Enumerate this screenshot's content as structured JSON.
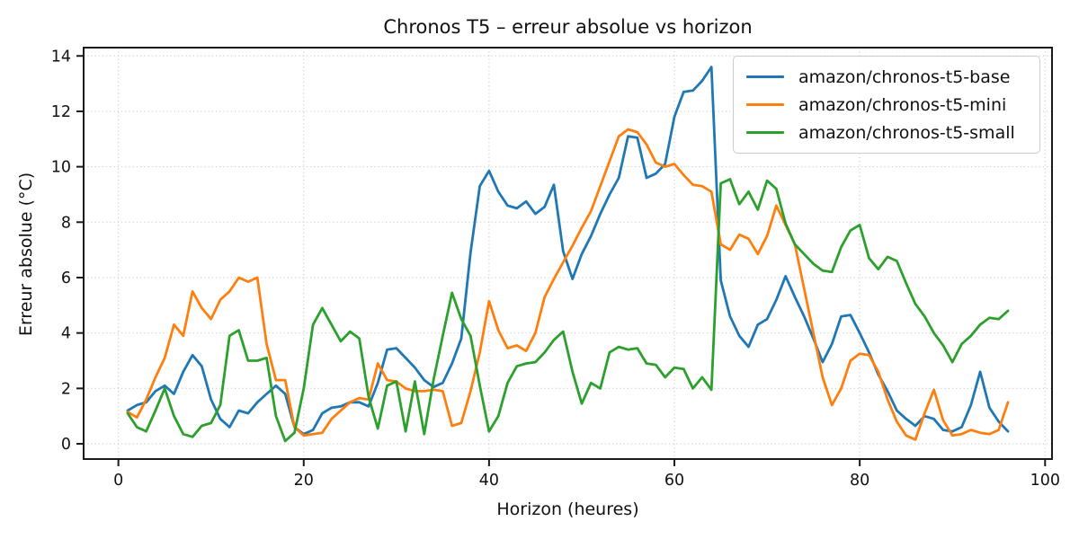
{
  "chart_data": {
    "type": "line",
    "title": "Chronos T5 – erreur absolue vs horizon",
    "xlabel": "Horizon (heures)",
    "ylabel": "Erreur absolue (°C)",
    "grid": "dotted",
    "legend_position": "upper right",
    "xlim": [
      -3.75,
      100.75
    ],
    "ylim": [
      -0.55,
      14.3
    ],
    "xticks": [
      0,
      20,
      40,
      60,
      80,
      100
    ],
    "yticks": [
      0,
      2,
      4,
      6,
      8,
      10,
      12,
      14
    ],
    "x": [
      1,
      2,
      3,
      4,
      5,
      6,
      7,
      8,
      9,
      10,
      11,
      12,
      13,
      14,
      15,
      16,
      17,
      18,
      19,
      20,
      21,
      22,
      23,
      24,
      25,
      26,
      27,
      28,
      29,
      30,
      31,
      32,
      33,
      34,
      35,
      36,
      37,
      38,
      39,
      40,
      41,
      42,
      43,
      44,
      45,
      46,
      47,
      48,
      49,
      50,
      51,
      52,
      53,
      54,
      55,
      56,
      57,
      58,
      59,
      60,
      61,
      62,
      63,
      64,
      65,
      66,
      67,
      68,
      69,
      70,
      71,
      72,
      73,
      74,
      75,
      76,
      77,
      78,
      79,
      80,
      81,
      82,
      83,
      84,
      85,
      86,
      87,
      88,
      89,
      90,
      91,
      92,
      93,
      94,
      95,
      96
    ],
    "series": [
      {
        "name": "amazon/chronos-t5-base",
        "color": "#1f77b4",
        "values": [
          1.2,
          1.4,
          1.5,
          1.9,
          2.1,
          1.8,
          2.6,
          3.2,
          2.8,
          1.6,
          0.9,
          0.6,
          1.2,
          1.1,
          1.5,
          1.8,
          2.1,
          1.8,
          0.6,
          0.35,
          0.5,
          1.1,
          1.3,
          1.35,
          1.5,
          1.5,
          1.35,
          2.2,
          3.4,
          3.45,
          3.1,
          2.75,
          2.3,
          2.05,
          2.2,
          2.9,
          3.8,
          6.9,
          9.3,
          9.85,
          9.1,
          8.6,
          8.5,
          8.75,
          8.3,
          8.55,
          9.35,
          6.95,
          5.95,
          6.85,
          7.5,
          8.3,
          9.0,
          9.6,
          11.1,
          11.05,
          9.6,
          9.75,
          10.1,
          11.8,
          12.7,
          12.75,
          13.1,
          13.6,
          5.9,
          4.6,
          3.9,
          3.5,
          4.3,
          4.5,
          5.2,
          6.05,
          5.3,
          4.6,
          3.8,
          2.95,
          3.6,
          4.6,
          4.65,
          4.0,
          3.3,
          2.5,
          1.9,
          1.2,
          0.9,
          0.65,
          1.0,
          0.9,
          0.5,
          0.45,
          0.6,
          1.4,
          2.6,
          1.3,
          0.8,
          0.45
        ]
      },
      {
        "name": "amazon/chronos-t5-mini",
        "color": "#ff7f0e",
        "values": [
          1.15,
          0.95,
          1.6,
          2.4,
          3.1,
          4.3,
          3.9,
          5.5,
          4.9,
          4.5,
          5.2,
          5.5,
          6.0,
          5.85,
          6.0,
          3.6,
          2.3,
          2.3,
          0.6,
          0.3,
          0.35,
          0.4,
          0.9,
          1.2,
          1.5,
          1.65,
          1.6,
          2.9,
          2.3,
          2.25,
          2.0,
          1.9,
          1.9,
          1.95,
          1.9,
          0.65,
          0.75,
          1.9,
          3.3,
          5.15,
          4.1,
          3.45,
          3.55,
          3.35,
          4.0,
          5.3,
          5.95,
          6.55,
          7.15,
          7.8,
          8.4,
          9.3,
          10.2,
          11.1,
          11.35,
          11.25,
          10.8,
          10.15,
          10.0,
          10.1,
          9.7,
          9.35,
          9.3,
          9.1,
          7.2,
          7.0,
          7.55,
          7.4,
          6.85,
          7.5,
          8.6,
          7.9,
          7.2,
          5.6,
          4.0,
          2.4,
          1.4,
          2.0,
          3.0,
          3.25,
          3.2,
          2.6,
          1.6,
          0.8,
          0.3,
          0.15,
          1.1,
          1.95,
          0.85,
          0.3,
          0.35,
          0.5,
          0.4,
          0.35,
          0.5,
          1.5
        ]
      },
      {
        "name": "amazon/chronos-t5-small",
        "color": "#2ca02c",
        "values": [
          1.1,
          0.6,
          0.45,
          1.2,
          2.0,
          1.0,
          0.35,
          0.25,
          0.65,
          0.75,
          1.4,
          3.9,
          4.1,
          3.0,
          3.0,
          3.1,
          1.0,
          0.1,
          0.4,
          2.0,
          4.3,
          4.9,
          4.3,
          3.7,
          4.05,
          3.8,
          1.7,
          0.55,
          2.1,
          2.25,
          0.45,
          2.25,
          0.35,
          2.3,
          3.9,
          5.45,
          4.5,
          3.9,
          2.1,
          0.45,
          1.0,
          2.2,
          2.8,
          2.9,
          2.95,
          3.3,
          3.75,
          4.05,
          2.6,
          1.45,
          2.2,
          2.0,
          3.3,
          3.5,
          3.4,
          3.45,
          2.9,
          2.85,
          2.4,
          2.75,
          2.7,
          2.0,
          2.4,
          1.95,
          9.4,
          9.55,
          8.65,
          9.1,
          8.45,
          9.5,
          9.2,
          7.95,
          7.2,
          6.85,
          6.5,
          6.25,
          6.2,
          7.1,
          7.7,
          7.9,
          6.7,
          6.3,
          6.75,
          6.6,
          5.8,
          5.05,
          4.6,
          4.0,
          3.55,
          2.95,
          3.6,
          3.9,
          4.3,
          4.55,
          4.5,
          4.8
        ]
      }
    ]
  },
  "legend": {
    "items": [
      {
        "label": "amazon/chronos-t5-base",
        "color": "#1f77b4"
      },
      {
        "label": "amazon/chronos-t5-mini",
        "color": "#ff7f0e"
      },
      {
        "label": "amazon/chronos-t5-small",
        "color": "#2ca02c"
      }
    ]
  },
  "style": {
    "spine_color": "#1a1a1a",
    "grid_color": "#cfcfcf",
    "tick_label_color": "#111111"
  }
}
